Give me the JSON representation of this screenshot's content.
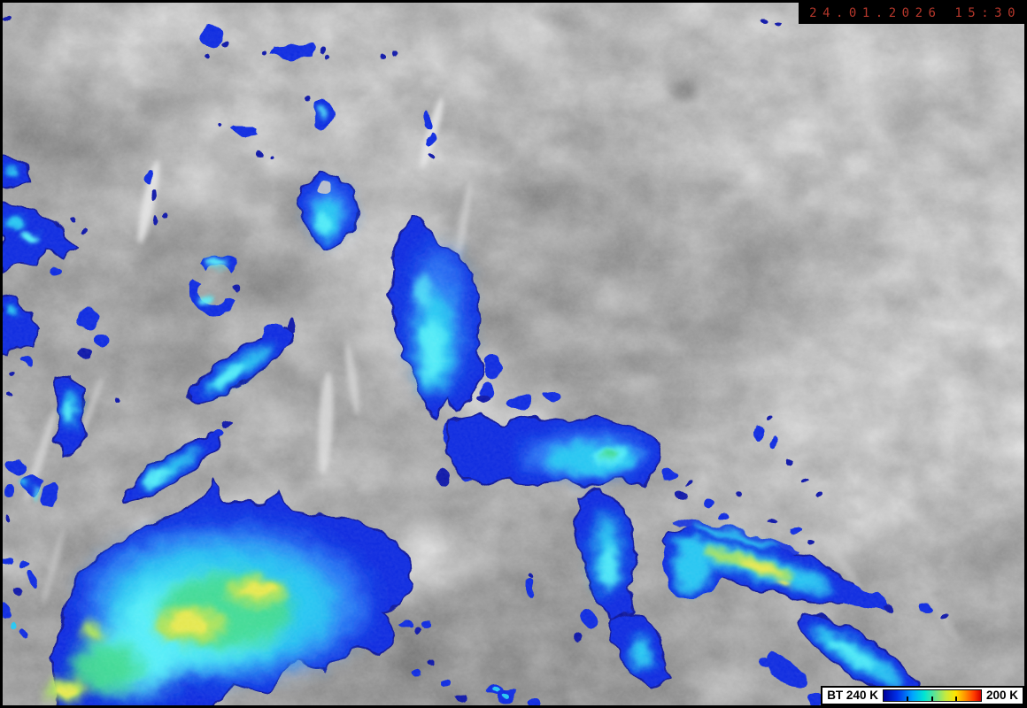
{
  "overlay": {
    "timestamp": "24.01.2026 15:30",
    "timestamp_color": "#b5372b",
    "timestamp_background": "#000000"
  },
  "colorbar": {
    "label_left": "BT 240 K",
    "label_right": "200 K",
    "quantity": "BT",
    "value_left_k": 240,
    "value_right_k": 200,
    "tick_positions_pct": [
      25,
      50,
      75
    ],
    "gradient_stops": [
      "#00009a 0%",
      "#0030e8 14%",
      "#00a6ff 30%",
      "#00e6d2 42%",
      "#6ee488 54%",
      "#c6ea3e 64%",
      "#ffe400 74%",
      "#ff9000 84%",
      "#ff3a00 93%",
      "#cf0000 100%"
    ],
    "background": "#ffffff",
    "border_color": "#000000"
  },
  "image_palette": {
    "gray_base": "#a8a8a8",
    "cold_rim_navy": "#0d14a8",
    "cold_rim_blue": "#0a2be0",
    "cold_mid_cyan": "#26c6f2",
    "cold_bright_cyan": "#55eef8",
    "cold_core_green": "#3fd98c",
    "cold_core_yellow": "#ece94f"
  }
}
